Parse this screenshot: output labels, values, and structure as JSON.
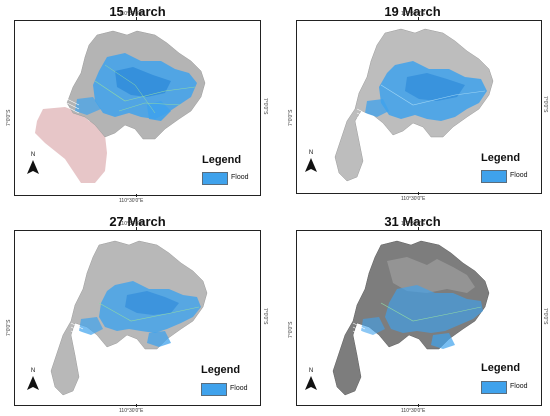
{
  "colors": {
    "flood": "#3fa2ec",
    "land_light": "#b4b4b4",
    "land_dark": "#7d7d7d",
    "frame": "#222222"
  },
  "panels": [
    {
      "title": "15 March",
      "coord_top": "110°30'0\"E",
      "coord_bottom": "110°30'0\"E",
      "coord_left": "7°0'0\"S",
      "coord_right": "7°0'0\"S",
      "north_letter": "N",
      "north_icon": "north-arrow-icon",
      "legend_title": "Legend",
      "legend_label": "Flood"
    },
    {
      "title": "19 March",
      "coord_top": "110°30'0\"E",
      "coord_bottom": "110°30'0\"E",
      "coord_left": "7°0'0\"S",
      "coord_right": "7°0'0\"S",
      "north_letter": "N",
      "north_icon": "north-arrow-icon",
      "legend_title": "Legend",
      "legend_label": "Flood"
    },
    {
      "title": "27 March",
      "coord_top": "110°30'0\"E",
      "coord_bottom": "110°30'0\"E",
      "coord_left": "7°0'0\"S",
      "coord_right": "7°0'0\"S",
      "north_letter": "N",
      "north_icon": "north-arrow-icon",
      "legend_title": "Legend",
      "legend_label": "Flood"
    },
    {
      "title": "31 March",
      "coord_top": "110°30'0\"E",
      "coord_bottom": "110°30'0\"E",
      "coord_left": "7°0'0\"S",
      "coord_right": "7°0'0\"S",
      "north_letter": "N",
      "north_icon": "north-arrow-icon",
      "legend_title": "Legend",
      "legend_label": "Flood"
    }
  ]
}
